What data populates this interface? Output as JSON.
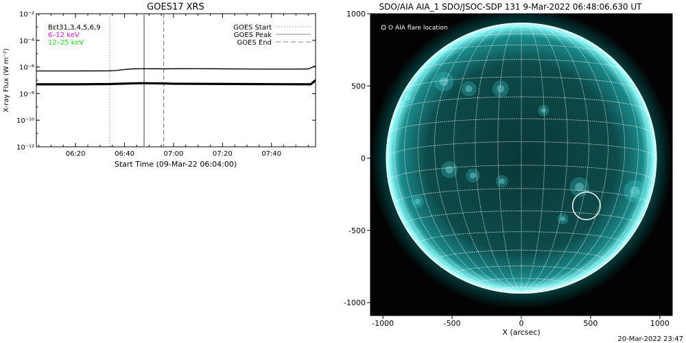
{
  "colors": {
    "lo_band": "#dd11dd",
    "hi_band": "#22dd22",
    "euv_teal": "#00c8c8",
    "flare_marker": "#ffffff"
  },
  "footer_stamp": "20-Mar-2022 23:47",
  "chart_data": [
    {
      "type": "line",
      "title": "GOES17 XRS",
      "xlabel": "Start Time (09-Mar-22 06:04:00)",
      "ylabel": "X-ray Flux (W m⁻²)",
      "xlim": [
        "06:04",
        "07:58"
      ],
      "ylim": [
        1e-12,
        0.01
      ],
      "yscale": "log",
      "x_ticks": [
        "06:20",
        "06:40",
        "07:00",
        "07:20",
        "07:40"
      ],
      "y_ticks": [
        {
          "value": 0.01,
          "label": "10⁻²"
        },
        {
          "value": 0.0001,
          "label": "10⁻⁴"
        },
        {
          "value": 1e-06,
          "label": "10⁻⁶"
        },
        {
          "value": 1e-08,
          "label": "10⁻⁸"
        },
        {
          "value": 1e-10,
          "label": "10⁻¹⁰"
        },
        {
          "value": 1e-12,
          "label": "10⁻¹²"
        }
      ],
      "annotations": [
        {
          "text": "Bεt31,3,4,5,6,9",
          "color": "#000000"
        },
        {
          "text": "6–12 keV",
          "color": "#dd11dd"
        },
        {
          "text": "12–25 keV",
          "color": "#22dd22"
        }
      ],
      "legend": {
        "placement": "top-right",
        "entries": [
          {
            "label": "GOES Start",
            "style": "dotted"
          },
          {
            "label": "GOES Peak",
            "style": "solid"
          },
          {
            "label": "GOES End",
            "style": "dashed"
          }
        ]
      },
      "event_lines": [
        {
          "kind": "start",
          "x": "06:34",
          "style": "dotted"
        },
        {
          "kind": "peak",
          "x": "06:48",
          "style": "solid"
        },
        {
          "kind": "end",
          "x": "06:56",
          "style": "dashed"
        }
      ],
      "series": [
        {
          "x": [
            "06:04",
            "06:20",
            "06:33",
            "06:36",
            "06:38",
            "06:40",
            "06:42",
            "06:44",
            "06:46",
            "06:48",
            "06:52",
            "06:56",
            "07:00",
            "07:10",
            "07:20",
            "07:30",
            "07:40",
            "07:50",
            "07:55",
            "07:58"
          ],
          "y": [
            5e-07,
            5e-07,
            5.1e-07,
            5.3e-07,
            5.8e-07,
            6.4e-07,
            6.9e-07,
            7.2e-07,
            7.4e-07,
            7.4e-07,
            7.3e-07,
            7.2e-07,
            7.4e-07,
            7.5e-07,
            7.2e-07,
            7e-07,
            6.9e-07,
            6.9e-07,
            7.1e-07,
            1.2e-06
          ]
        },
        {
          "x": [
            "06:04",
            "06:20",
            "06:34",
            "06:40",
            "06:46",
            "06:48",
            "06:56",
            "07:00",
            "07:20",
            "07:40",
            "07:56",
            "07:58"
          ],
          "y": [
            5e-08,
            5e-08,
            5.2e-08,
            5.6e-08,
            6e-08,
            6e-08,
            5.8e-08,
            5.5e-08,
            5.3e-08,
            5.1e-08,
            5e-08,
            1e-07
          ]
        }
      ]
    },
    {
      "type": "heatmap",
      "title": "SDO/AIA AIA_1 SDO/JSOC-SDP 131  9-Mar-2022 06:48:06.630 UT",
      "xlabel": "X (arcsec)",
      "ylabel": "",
      "xlim": [
        -1090,
        1090
      ],
      "ylim": [
        -1090,
        1000
      ],
      "x_ticks": [
        -1000,
        -500,
        0,
        500,
        1000
      ],
      "y_ticks": [
        1000,
        500,
        0,
        -500,
        -1000
      ],
      "grid": true,
      "legend_text": "O AIA flare location",
      "flare_location": {
        "x": 470,
        "y": -330
      }
    }
  ]
}
